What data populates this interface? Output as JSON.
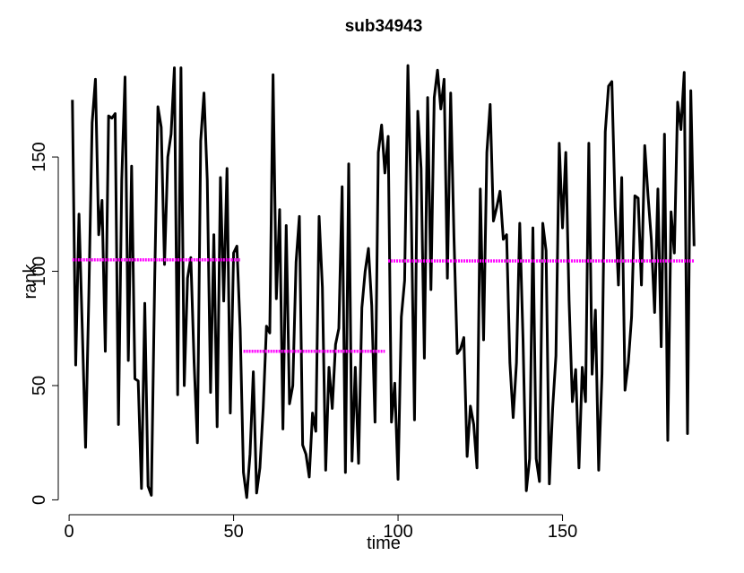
{
  "chart_data": {
    "type": "line",
    "title": "sub34943",
    "xlabel": "time",
    "ylabel": "rank",
    "color": "#000000",
    "x": [
      1,
      2,
      3,
      4,
      5,
      6,
      7,
      8,
      9,
      10,
      11,
      12,
      13,
      14,
      15,
      16,
      17,
      18,
      19,
      20,
      21,
      22,
      23,
      24,
      25,
      26,
      27,
      28,
      29,
      30,
      31,
      32,
      33,
      34,
      35,
      36,
      37,
      38,
      39,
      40,
      41,
      42,
      43,
      44,
      45,
      46,
      47,
      48,
      49,
      50,
      51,
      52,
      53,
      54,
      55,
      56,
      57,
      58,
      59,
      60,
      61,
      62,
      63,
      64,
      65,
      66,
      67,
      68,
      69,
      70,
      71,
      72,
      73,
      74,
      75,
      76,
      77,
      78,
      79,
      80,
      81,
      82,
      83,
      84,
      85,
      86,
      87,
      88,
      89,
      90,
      91,
      92,
      93,
      94,
      95,
      96,
      97,
      98,
      99,
      100,
      101,
      102,
      103,
      104,
      105,
      106,
      107,
      108,
      109,
      110,
      111,
      112,
      113,
      114,
      115,
      116,
      117,
      118,
      119,
      120,
      121,
      122,
      123,
      124,
      125,
      126,
      127,
      128,
      129,
      130,
      131,
      132,
      133,
      134,
      135,
      136,
      137,
      138,
      139,
      140,
      141,
      142,
      143,
      144,
      145,
      146,
      147,
      148,
      149,
      150,
      151,
      152,
      153,
      154,
      155,
      156,
      157,
      158,
      159,
      160,
      161,
      162,
      163,
      164,
      165,
      166,
      167,
      168,
      169,
      170,
      171,
      172,
      173,
      174,
      175,
      176,
      177,
      178,
      179,
      180,
      181,
      182,
      183,
      184,
      185,
      186,
      187,
      188,
      189,
      190
    ],
    "values": [
      175,
      59,
      125,
      75,
      23,
      90,
      165,
      184,
      116,
      131,
      65,
      168,
      167,
      169,
      33,
      140,
      185,
      61,
      146,
      53,
      52,
      5,
      86,
      6,
      2,
      95,
      172,
      163,
      103,
      150,
      160,
      189,
      46,
      189,
      50,
      97,
      106,
      60,
      25,
      157,
      178,
      140,
      47,
      116,
      32,
      141,
      87,
      145,
      38,
      108,
      111,
      75,
      12,
      1,
      20,
      56,
      3,
      14,
      40,
      76,
      73,
      186,
      88,
      127,
      31,
      120,
      42,
      50,
      104,
      124,
      24,
      20,
      10,
      38,
      30,
      124,
      93,
      13,
      58,
      40,
      68,
      75,
      137,
      12,
      147,
      17,
      58,
      16,
      84,
      100,
      110,
      85,
      34,
      152,
      164,
      143,
      159,
      34,
      51,
      9,
      80,
      96,
      190,
      128,
      35,
      170,
      145,
      62,
      176,
      92,
      176,
      188,
      171,
      184,
      97,
      178,
      115,
      64,
      66,
      71,
      19,
      41,
      33,
      14,
      136,
      70,
      152,
      173,
      122,
      128,
      135,
      114,
      116,
      60,
      36,
      60,
      121,
      70,
      4,
      18,
      119,
      18,
      8,
      121,
      109,
      7,
      40,
      63,
      156,
      119,
      152,
      87,
      43,
      57,
      14,
      58,
      43,
      156,
      55,
      83,
      13,
      55,
      161,
      181,
      183,
      128,
      94,
      141,
      48,
      60,
      80,
      133,
      132,
      94,
      155,
      133,
      114,
      82,
      136,
      67,
      160,
      26,
      126,
      108,
      174,
      162,
      187,
      29,
      179,
      111
    ],
    "segments": [
      {
        "x": [
          1,
          52
        ],
        "y": 105
      },
      {
        "x": [
          53,
          96
        ],
        "y": 65
      },
      {
        "x": [
          97,
          190
        ],
        "y": 104.5
      }
    ],
    "segment_color": "#ff00ff",
    "xlim": [
      -3.3,
      197
    ],
    "ylim": [
      -6.5,
      197.5
    ],
    "xticks": [
      0,
      50,
      100,
      150
    ],
    "yticks": [
      0,
      50,
      100,
      150
    ]
  }
}
